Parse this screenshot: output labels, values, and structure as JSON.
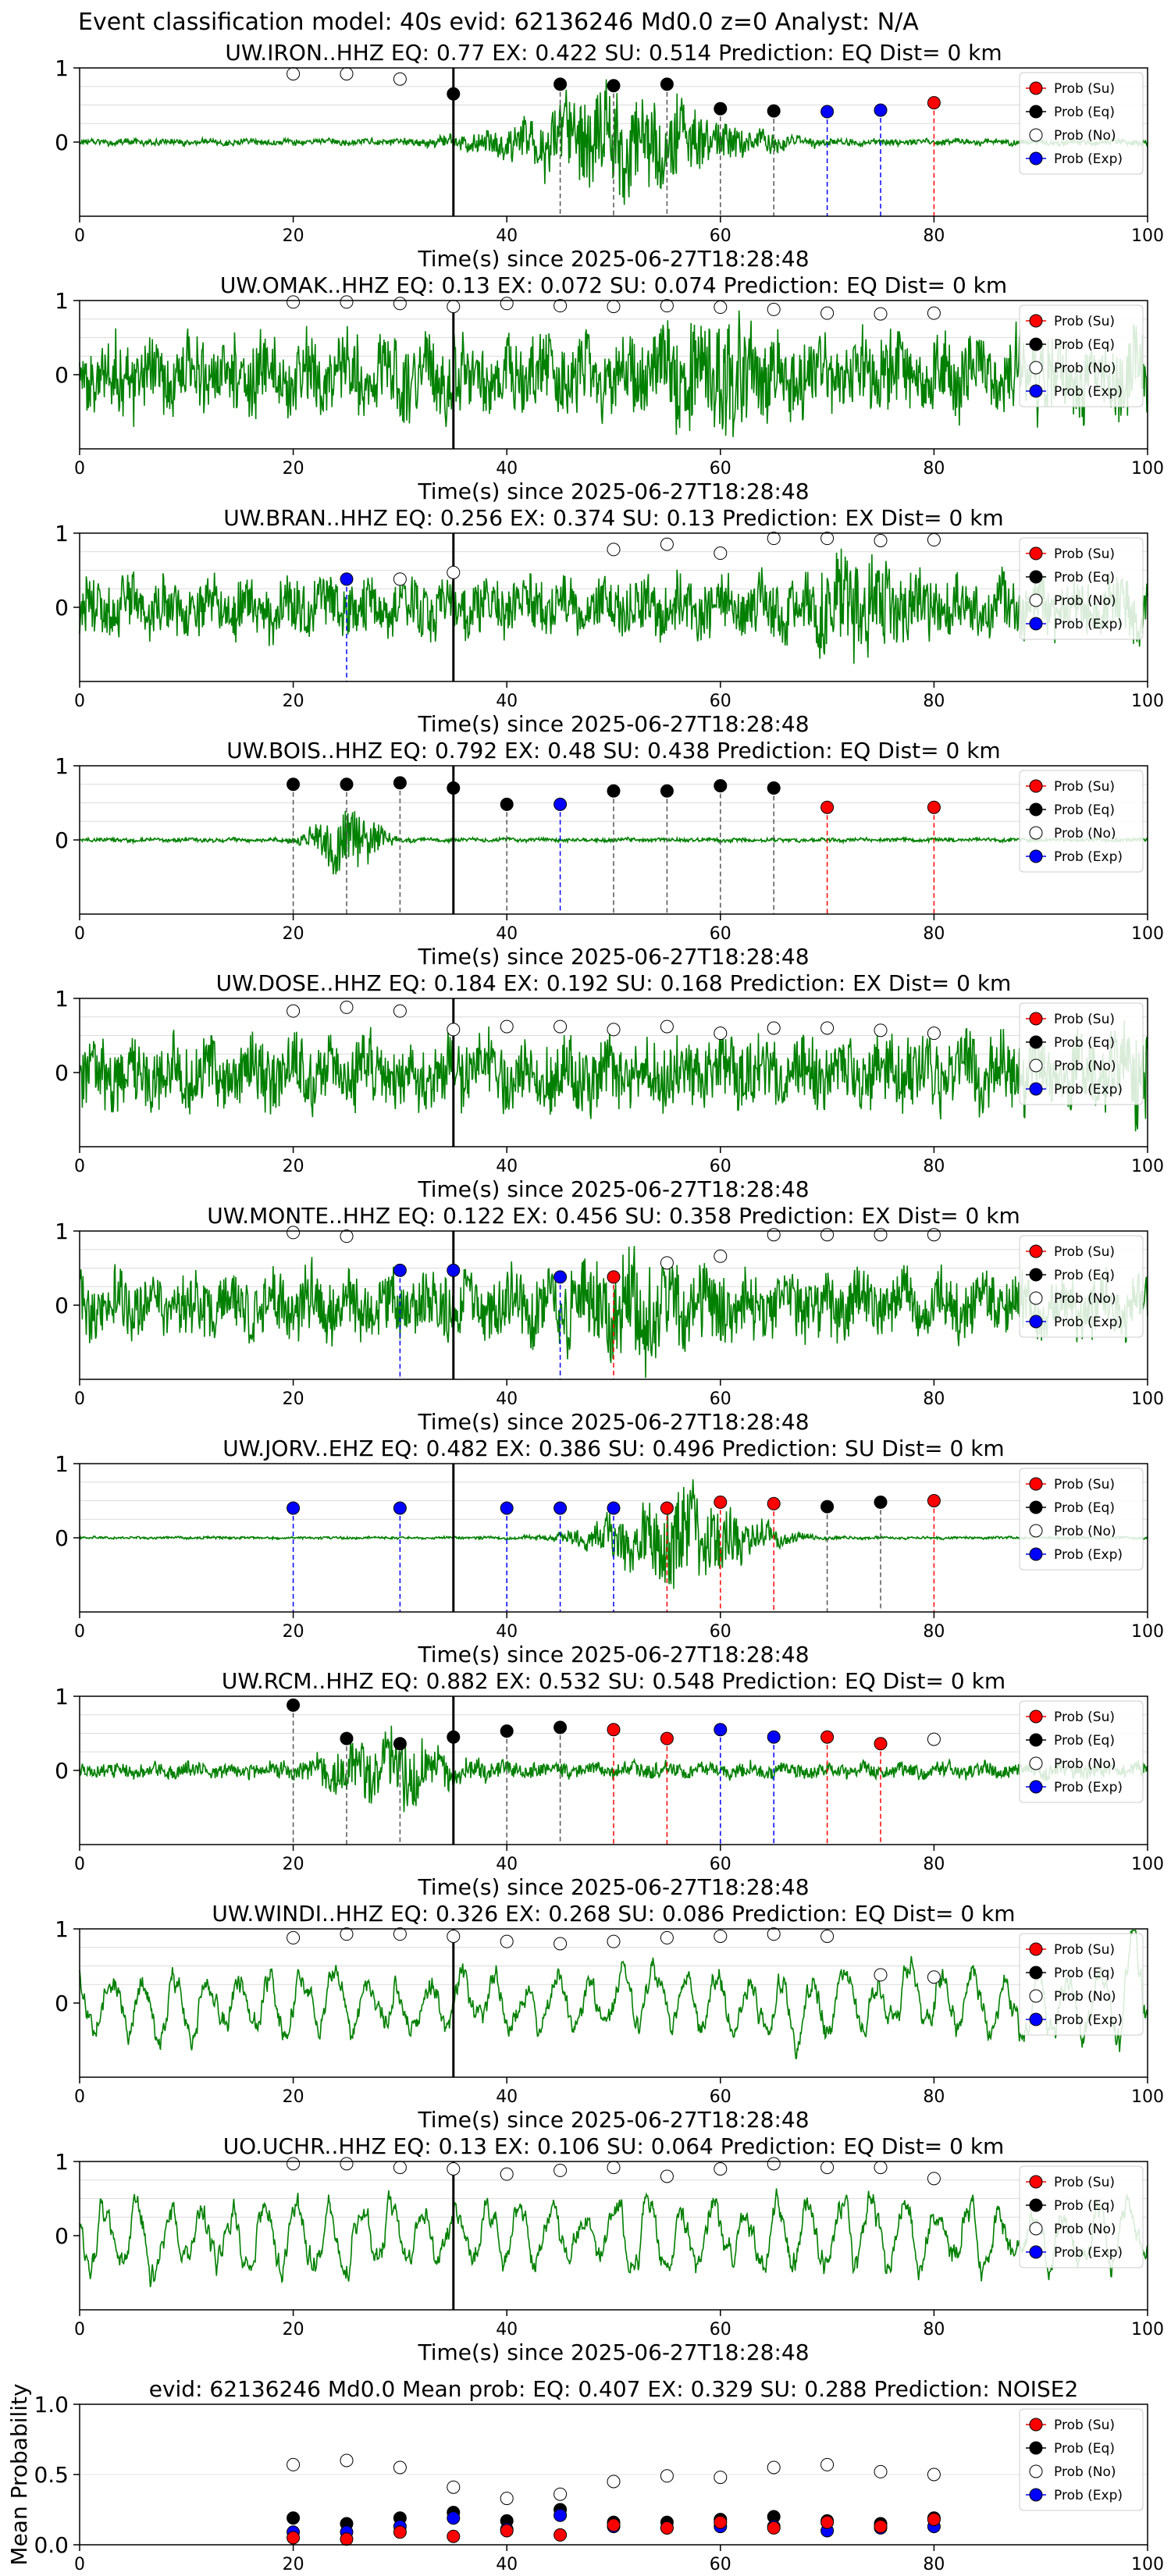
{
  "suptitle": "Event classification model: 40s evid: 62136246 Md0.0 z=0 Analyst: N/A",
  "legend_labels": [
    "Prob (Su)",
    "Prob (Eq)",
    "Prob (No)",
    "Prob (Exp)"
  ],
  "colors": {
    "waveform": "#008000",
    "su": "#ff0000",
    "eq": "#000000",
    "no": "#ffffff",
    "exp": "#0000ff",
    "pick": "#000000"
  },
  "chart_data": [
    {
      "type": "line",
      "title": "UW.IRON..HHZ   EQ: 0.77  EX: 0.422  SU: 0.514   Prediction: EQ    Dist= 0 km",
      "xlabel": "Time(s) since 2025-06-27T18:28:48",
      "xlim": [
        0,
        100
      ],
      "xticks": [
        0,
        20,
        40,
        60,
        80,
        100
      ],
      "yticks": [
        0,
        1
      ],
      "pick_time": 35,
      "amp": 0.05,
      "burst_at": 51,
      "burst_amp": 0.8,
      "spread": 10,
      "points": [
        {
          "x": 20,
          "y": 0.92,
          "cls": "no"
        },
        {
          "x": 25,
          "y": 0.92,
          "cls": "no"
        },
        {
          "x": 30,
          "y": 0.85,
          "cls": "no"
        },
        {
          "x": 35,
          "y": 0.65,
          "cls": "eq"
        },
        {
          "x": 45,
          "y": 0.78,
          "cls": "eq"
        },
        {
          "x": 50,
          "y": 0.76,
          "cls": "eq"
        },
        {
          "x": 55,
          "y": 0.78,
          "cls": "eq"
        },
        {
          "x": 60,
          "y": 0.45,
          "cls": "eq"
        },
        {
          "x": 65,
          "y": 0.42,
          "cls": "eq"
        },
        {
          "x": 70,
          "y": 0.41,
          "cls": "exp"
        },
        {
          "x": 75,
          "y": 0.43,
          "cls": "exp"
        },
        {
          "x": 80,
          "y": 0.53,
          "cls": "su"
        }
      ]
    },
    {
      "type": "line",
      "title": "UW.OMAK..HHZ   EQ: 0.13  EX: 0.072  SU: 0.074   Prediction: EQ    Dist= 0 km",
      "xlabel": "Time(s) since 2025-06-27T18:28:48",
      "xlim": [
        0,
        100
      ],
      "xticks": [
        0,
        20,
        40,
        60,
        80,
        100
      ],
      "yticks": [
        0,
        1
      ],
      "pick_time": 35,
      "amp": 0.6,
      "burst_at": 60,
      "burst_amp": 0.95,
      "spread": 4,
      "points": [
        {
          "x": 20,
          "y": 0.98,
          "cls": "no"
        },
        {
          "x": 25,
          "y": 0.98,
          "cls": "no"
        },
        {
          "x": 30,
          "y": 0.96,
          "cls": "no"
        },
        {
          "x": 35,
          "y": 0.92,
          "cls": "no"
        },
        {
          "x": 40,
          "y": 0.96,
          "cls": "no"
        },
        {
          "x": 45,
          "y": 0.93,
          "cls": "no"
        },
        {
          "x": 50,
          "y": 0.92,
          "cls": "no"
        },
        {
          "x": 55,
          "y": 0.93,
          "cls": "no"
        },
        {
          "x": 60,
          "y": 0.91,
          "cls": "no"
        },
        {
          "x": 65,
          "y": 0.88,
          "cls": "no"
        },
        {
          "x": 70,
          "y": 0.83,
          "cls": "no"
        },
        {
          "x": 75,
          "y": 0.82,
          "cls": "no"
        },
        {
          "x": 80,
          "y": 0.83,
          "cls": "no"
        }
      ]
    },
    {
      "type": "line",
      "title": "UW.BRAN..HHZ   EQ: 0.256  EX: 0.374  SU: 0.13   Prediction: EX    Dist= 0 km",
      "xlabel": "Time(s) since 2025-06-27T18:28:48",
      "xlim": [
        0,
        100
      ],
      "xticks": [
        0,
        20,
        40,
        60,
        80,
        100
      ],
      "yticks": [
        0,
        1
      ],
      "pick_time": 35,
      "amp": 0.45,
      "burst_at": 73,
      "burst_amp": 0.9,
      "spread": 4,
      "points": [
        {
          "x": 25,
          "y": 0.38,
          "cls": "exp"
        },
        {
          "x": 30,
          "y": 0.38,
          "cls": "no"
        },
        {
          "x": 35,
          "y": 0.47,
          "cls": "no"
        },
        {
          "x": 50,
          "y": 0.78,
          "cls": "no"
        },
        {
          "x": 55,
          "y": 0.85,
          "cls": "no"
        },
        {
          "x": 60,
          "y": 0.73,
          "cls": "no"
        },
        {
          "x": 65,
          "y": 0.93,
          "cls": "no"
        },
        {
          "x": 70,
          "y": 0.93,
          "cls": "no"
        },
        {
          "x": 75,
          "y": 0.9,
          "cls": "no"
        },
        {
          "x": 80,
          "y": 0.91,
          "cls": "no"
        }
      ]
    },
    {
      "type": "line",
      "title": "UW.BOIS..HHZ   EQ: 0.792  EX: 0.48  SU: 0.438   Prediction: EQ    Dist= 0 km",
      "xlabel": "Time(s) since 2025-06-27T18:28:48",
      "xlim": [
        0,
        100
      ],
      "xticks": [
        0,
        20,
        40,
        60,
        80,
        100
      ],
      "yticks": [
        0,
        1
      ],
      "pick_time": 35,
      "amp": 0.03,
      "burst_at": 25,
      "burst_amp": 0.55,
      "spread": 3,
      "points": [
        {
          "x": 20,
          "y": 0.75,
          "cls": "eq"
        },
        {
          "x": 25,
          "y": 0.75,
          "cls": "eq"
        },
        {
          "x": 30,
          "y": 0.77,
          "cls": "eq"
        },
        {
          "x": 35,
          "y": 0.7,
          "cls": "eq"
        },
        {
          "x": 40,
          "y": 0.48,
          "cls": "eq"
        },
        {
          "x": 45,
          "y": 0.48,
          "cls": "exp"
        },
        {
          "x": 50,
          "y": 0.66,
          "cls": "eq"
        },
        {
          "x": 55,
          "y": 0.66,
          "cls": "eq"
        },
        {
          "x": 60,
          "y": 0.73,
          "cls": "eq"
        },
        {
          "x": 65,
          "y": 0.7,
          "cls": "eq"
        },
        {
          "x": 70,
          "y": 0.44,
          "cls": "su"
        },
        {
          "x": 80,
          "y": 0.44,
          "cls": "su"
        }
      ]
    },
    {
      "type": "line",
      "title": "UW.DOSE..HHZ   EQ: 0.184  EX: 0.192  SU: 0.168   Prediction: EX    Dist= 0 km",
      "xlabel": "Time(s) since 2025-06-27T18:28:48",
      "xlim": [
        0,
        100
      ],
      "xticks": [
        0,
        20,
        40,
        60,
        80,
        100
      ],
      "yticks": [
        0,
        1
      ],
      "pick_time": 35,
      "amp": 0.55,
      "burst_at": 99,
      "burst_amp": 0.9,
      "spread": 1,
      "points": [
        {
          "x": 20,
          "y": 0.83,
          "cls": "no"
        },
        {
          "x": 25,
          "y": 0.88,
          "cls": "no"
        },
        {
          "x": 30,
          "y": 0.83,
          "cls": "no"
        },
        {
          "x": 35,
          "y": 0.58,
          "cls": "no"
        },
        {
          "x": 40,
          "y": 0.62,
          "cls": "no"
        },
        {
          "x": 45,
          "y": 0.62,
          "cls": "no"
        },
        {
          "x": 50,
          "y": 0.58,
          "cls": "no"
        },
        {
          "x": 55,
          "y": 0.62,
          "cls": "no"
        },
        {
          "x": 60,
          "y": 0.53,
          "cls": "no"
        },
        {
          "x": 65,
          "y": 0.6,
          "cls": "no"
        },
        {
          "x": 70,
          "y": 0.6,
          "cls": "no"
        },
        {
          "x": 75,
          "y": 0.57,
          "cls": "no"
        },
        {
          "x": 80,
          "y": 0.53,
          "cls": "no"
        }
      ]
    },
    {
      "type": "line",
      "title": "UW.MONTE..HHZ   EQ: 0.122  EX: 0.456  SU: 0.358   Prediction: EX    Dist= 0 km",
      "xlabel": "Time(s) since 2025-06-27T18:28:48",
      "xlim": [
        0,
        100
      ],
      "xticks": [
        0,
        20,
        40,
        60,
        80,
        100
      ],
      "yticks": [
        0,
        1
      ],
      "pick_time": 35,
      "amp": 0.5,
      "burst_at": 52,
      "burst_amp": 0.85,
      "spread": 6,
      "points": [
        {
          "x": 20,
          "y": 0.98,
          "cls": "no"
        },
        {
          "x": 25,
          "y": 0.93,
          "cls": "no"
        },
        {
          "x": 30,
          "y": 0.47,
          "cls": "exp"
        },
        {
          "x": 35,
          "y": 0.47,
          "cls": "exp"
        },
        {
          "x": 45,
          "y": 0.38,
          "cls": "exp"
        },
        {
          "x": 50,
          "y": 0.38,
          "cls": "su"
        },
        {
          "x": 55,
          "y": 0.57,
          "cls": "no"
        },
        {
          "x": 60,
          "y": 0.66,
          "cls": "no"
        },
        {
          "x": 65,
          "y": 0.95,
          "cls": "no"
        },
        {
          "x": 70,
          "y": 0.95,
          "cls": "no"
        },
        {
          "x": 75,
          "y": 0.95,
          "cls": "no"
        },
        {
          "x": 80,
          "y": 0.95,
          "cls": "no"
        }
      ]
    },
    {
      "type": "line",
      "title": "UW.JORV..EHZ   EQ: 0.482  EX: 0.386  SU: 0.496   Prediction: SU    Dist= 0 km",
      "xlabel": "Time(s) since 2025-06-27T18:28:48",
      "xlim": [
        0,
        100
      ],
      "xticks": [
        0,
        20,
        40,
        60,
        80,
        100
      ],
      "yticks": [
        0,
        1
      ],
      "pick_time": 35,
      "amp": 0.02,
      "burst_at": 56,
      "burst_amp": 0.75,
      "spread": 7,
      "points": [
        {
          "x": 20,
          "y": 0.4,
          "cls": "exp"
        },
        {
          "x": 30,
          "y": 0.4,
          "cls": "exp"
        },
        {
          "x": 40,
          "y": 0.4,
          "cls": "exp"
        },
        {
          "x": 45,
          "y": 0.4,
          "cls": "exp"
        },
        {
          "x": 50,
          "y": 0.4,
          "cls": "exp"
        },
        {
          "x": 55,
          "y": 0.4,
          "cls": "su"
        },
        {
          "x": 60,
          "y": 0.48,
          "cls": "su"
        },
        {
          "x": 65,
          "y": 0.46,
          "cls": "su"
        },
        {
          "x": 70,
          "y": 0.42,
          "cls": "eq"
        },
        {
          "x": 75,
          "y": 0.48,
          "cls": "eq"
        },
        {
          "x": 80,
          "y": 0.5,
          "cls": "su"
        }
      ]
    },
    {
      "type": "line",
      "title": "UW.RCM..HHZ   EQ: 0.882  EX: 0.532  SU: 0.548   Prediction: EQ    Dist= 0 km",
      "xlabel": "Time(s) since 2025-06-27T18:28:48",
      "xlim": [
        0,
        100
      ],
      "xticks": [
        0,
        20,
        40,
        60,
        80,
        100
      ],
      "yticks": [
        0,
        1
      ],
      "pick_time": 35,
      "amp": 0.12,
      "burst_at": 29,
      "burst_amp": 0.55,
      "spread": 6,
      "points": [
        {
          "x": 20,
          "y": 0.88,
          "cls": "eq"
        },
        {
          "x": 25,
          "y": 0.43,
          "cls": "eq"
        },
        {
          "x": 30,
          "y": 0.36,
          "cls": "eq"
        },
        {
          "x": 35,
          "y": 0.45,
          "cls": "eq"
        },
        {
          "x": 40,
          "y": 0.53,
          "cls": "eq"
        },
        {
          "x": 45,
          "y": 0.58,
          "cls": "eq"
        },
        {
          "x": 50,
          "y": 0.55,
          "cls": "su"
        },
        {
          "x": 55,
          "y": 0.43,
          "cls": "su"
        },
        {
          "x": 60,
          "y": 0.55,
          "cls": "exp"
        },
        {
          "x": 65,
          "y": 0.45,
          "cls": "exp"
        },
        {
          "x": 70,
          "y": 0.45,
          "cls": "su"
        },
        {
          "x": 75,
          "y": 0.36,
          "cls": "su"
        },
        {
          "x": 80,
          "y": 0.42,
          "cls": "no"
        }
      ]
    },
    {
      "type": "line",
      "title": "UW.WINDI..HHZ   EQ: 0.326  EX: 0.268  SU: 0.086   Prediction: EQ    Dist= 0 km",
      "xlabel": "Time(s) since 2025-06-27T18:28:48",
      "xlim": [
        0,
        100
      ],
      "xticks": [
        0,
        20,
        40,
        60,
        80,
        100
      ],
      "yticks": [
        0,
        1
      ],
      "pick_time": 35,
      "amp": 0.6,
      "burst_at": 98,
      "burst_amp": 0.85,
      "spread": 2,
      "smooth": true,
      "points": [
        {
          "x": 20,
          "y": 0.88,
          "cls": "no"
        },
        {
          "x": 25,
          "y": 0.93,
          "cls": "no"
        },
        {
          "x": 30,
          "y": 0.93,
          "cls": "no"
        },
        {
          "x": 35,
          "y": 0.9,
          "cls": "no"
        },
        {
          "x": 40,
          "y": 0.83,
          "cls": "no"
        },
        {
          "x": 45,
          "y": 0.8,
          "cls": "no"
        },
        {
          "x": 50,
          "y": 0.83,
          "cls": "no"
        },
        {
          "x": 55,
          "y": 0.88,
          "cls": "no"
        },
        {
          "x": 60,
          "y": 0.9,
          "cls": "no"
        },
        {
          "x": 65,
          "y": 0.93,
          "cls": "no"
        },
        {
          "x": 70,
          "y": 0.9,
          "cls": "no"
        },
        {
          "x": 75,
          "y": 0.38,
          "cls": "no"
        },
        {
          "x": 80,
          "y": 0.35,
          "cls": "no"
        }
      ]
    },
    {
      "type": "line",
      "title": "UO.UCHR..HHZ   EQ: 0.13  EX: 0.106  SU: 0.064   Prediction: EQ    Dist= 0 km",
      "xlabel": "Time(s) since 2025-06-27T18:28:48",
      "xlim": [
        0,
        100
      ],
      "xticks": [
        0,
        20,
        40,
        60,
        80,
        100
      ],
      "yticks": [
        0,
        1
      ],
      "pick_time": 35,
      "amp": 0.6,
      "burst_at": 75,
      "burst_amp": 0.7,
      "spread": 10,
      "smooth": true,
      "points": [
        {
          "x": 20,
          "y": 0.97,
          "cls": "no"
        },
        {
          "x": 25,
          "y": 0.97,
          "cls": "no"
        },
        {
          "x": 30,
          "y": 0.92,
          "cls": "no"
        },
        {
          "x": 35,
          "y": 0.9,
          "cls": "no"
        },
        {
          "x": 40,
          "y": 0.83,
          "cls": "no"
        },
        {
          "x": 45,
          "y": 0.88,
          "cls": "no"
        },
        {
          "x": 50,
          "y": 0.92,
          "cls": "no"
        },
        {
          "x": 55,
          "y": 0.8,
          "cls": "no"
        },
        {
          "x": 60,
          "y": 0.9,
          "cls": "no"
        },
        {
          "x": 65,
          "y": 0.97,
          "cls": "no"
        },
        {
          "x": 70,
          "y": 0.92,
          "cls": "no"
        },
        {
          "x": 75,
          "y": 0.92,
          "cls": "no"
        },
        {
          "x": 80,
          "y": 0.77,
          "cls": "no"
        }
      ]
    },
    {
      "type": "scatter",
      "title": "evid: 62136246  Md0.0    Mean prob:    EQ: 0.407  EX: 0.329  SU: 0.288    Prediction: NOISE2",
      "xlabel": "",
      "ylabel": "Mean Probability",
      "xlim": [
        0,
        100
      ],
      "ylim": [
        0,
        1
      ],
      "xticks": [
        0,
        20,
        40,
        60,
        80,
        100
      ],
      "yticks": [
        0.0,
        0.5,
        1.0
      ],
      "ytick_labels": [
        "0.0",
        "0.5",
        "1.0"
      ],
      "x": [
        20,
        25,
        30,
        35,
        40,
        45,
        50,
        55,
        60,
        65,
        70,
        75,
        80
      ],
      "series": [
        {
          "cls": "no",
          "values": [
            0.57,
            0.6,
            0.55,
            0.41,
            0.33,
            0.36,
            0.45,
            0.49,
            0.48,
            0.55,
            0.57,
            0.52,
            0.5
          ]
        },
        {
          "cls": "eq",
          "values": [
            0.19,
            0.15,
            0.19,
            0.23,
            0.17,
            0.25,
            0.16,
            0.16,
            0.18,
            0.2,
            0.17,
            0.15,
            0.19
          ]
        },
        {
          "cls": "exp",
          "values": [
            0.09,
            0.09,
            0.13,
            0.19,
            0.11,
            0.21,
            0.13,
            0.12,
            0.13,
            0.13,
            0.1,
            0.12,
            0.13
          ]
        },
        {
          "cls": "su",
          "values": [
            0.05,
            0.04,
            0.09,
            0.06,
            0.1,
            0.07,
            0.14,
            0.12,
            0.16,
            0.12,
            0.16,
            0.13,
            0.18
          ]
        }
      ]
    }
  ]
}
